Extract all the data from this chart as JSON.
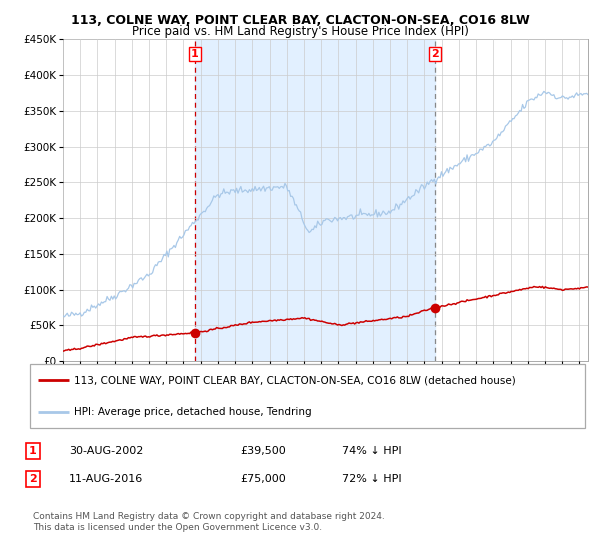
{
  "title": "113, COLNE WAY, POINT CLEAR BAY, CLACTON-ON-SEA, CO16 8LW",
  "subtitle": "Price paid vs. HM Land Registry's House Price Index (HPI)",
  "legend_line1": "113, COLNE WAY, POINT CLEAR BAY, CLACTON-ON-SEA, CO16 8LW (detached house)",
  "legend_line2": "HPI: Average price, detached house, Tendring",
  "transaction1_date": "30-AUG-2002",
  "transaction1_price": "£39,500",
  "transaction1_hpi": "74% ↓ HPI",
  "transaction2_date": "11-AUG-2016",
  "transaction2_price": "£75,000",
  "transaction2_hpi": "72% ↓ HPI",
  "footer": "Contains HM Land Registry data © Crown copyright and database right 2024.\nThis data is licensed under the Open Government Licence v3.0.",
  "hpi_color": "#a8c8e8",
  "price_color": "#cc0000",
  "vline1_color": "#cc0000",
  "vline2_color": "#888888",
  "bg_color": "#ddeeff",
  "ylim": [
    0,
    450000
  ],
  "xlim_start": 1995.0,
  "xlim_end": 2025.5,
  "transaction1_x": 2002.66,
  "transaction1_y": 39500,
  "transaction2_x": 2016.61,
  "transaction2_y": 75000
}
